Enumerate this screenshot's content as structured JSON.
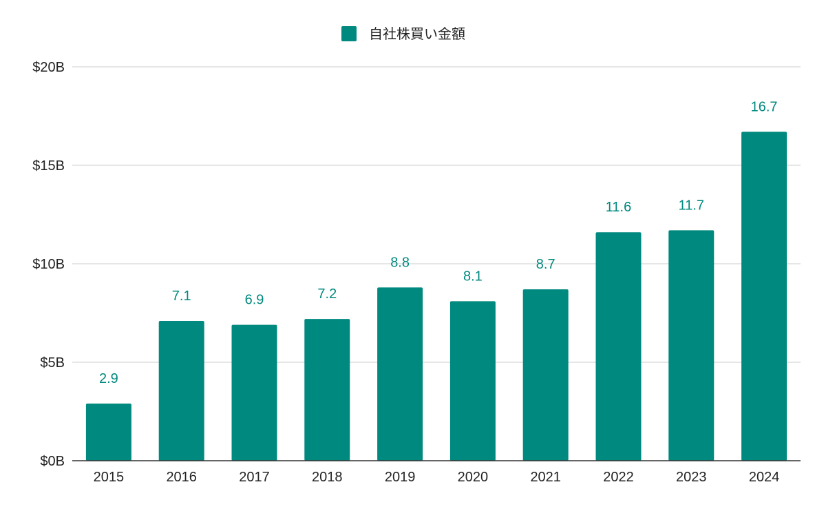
{
  "chart_data": {
    "type": "bar",
    "categories": [
      "2015",
      "2016",
      "2017",
      "2018",
      "2019",
      "2020",
      "2021",
      "2022",
      "2023",
      "2024"
    ],
    "series": [
      {
        "name": "自社株買い金額",
        "values": [
          2.9,
          7.1,
          6.9,
          7.2,
          8.8,
          8.1,
          8.7,
          11.6,
          11.7,
          16.7
        ],
        "data_labels": [
          "2.9",
          "7.1",
          "6.9",
          "7.2",
          "8.8",
          "8.1",
          "8.7",
          "11.6",
          "11.7",
          "16.7"
        ]
      }
    ],
    "y_ticks": [
      0,
      5,
      10,
      15,
      20
    ],
    "y_tick_labels": [
      "$0B",
      "$5B",
      "$10B",
      "$15B",
      "$20B"
    ],
    "ylim": [
      0,
      20
    ],
    "grid": true,
    "legend_position": "top-center",
    "colors": {
      "bar": "#00897f",
      "grid": "#cccccc",
      "axis": "#333333",
      "tick_text": "#222222"
    }
  }
}
